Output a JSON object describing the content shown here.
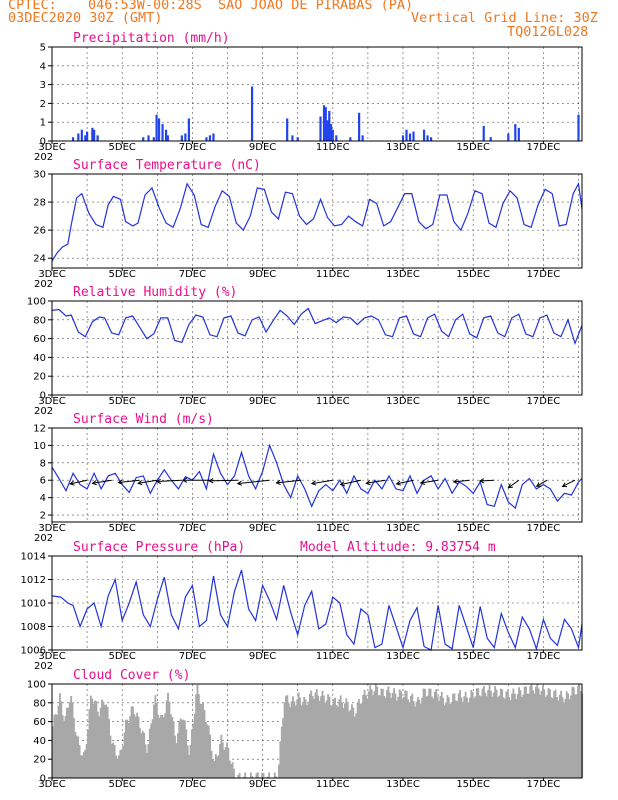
{
  "header": {
    "agency": "CPTEC:",
    "location": "046:53W-00:28S  SAO JOAO DE PIRABAS (PA)",
    "start_time": "03DEC2020 30Z (GMT)",
    "grid_note": "Vertical Grid Line: 30Z",
    "model_code": "TQ0126L028"
  },
  "colors": {
    "header": "#f07820",
    "title": "#e8108c",
    "series": "#2233dd",
    "bars": "#2244ee",
    "cloud": "#a8a8a8",
    "wind_arrow": "#000000"
  },
  "x_axis": {
    "tick_labels": [
      "3DEC",
      "5DEC",
      "7DEC",
      "9DEC",
      "11DEC",
      "13DEC",
      "15DEC",
      "17DEC"
    ],
    "year_label": "202"
  },
  "chart_data": [
    {
      "id": "precip",
      "type": "bar",
      "title": "Precipitation (mm/h)",
      "ylabel": "mm/h",
      "ylim": [
        0,
        5
      ],
      "yticks": [
        0,
        1,
        2,
        3,
        4,
        5
      ],
      "x_range_days": [
        0,
        15.1
      ],
      "events": [
        {
          "day": 0.6,
          "value": 0.2
        },
        {
          "day": 0.75,
          "value": 0.4
        },
        {
          "day": 0.85,
          "value": 0.6
        },
        {
          "day": 0.95,
          "value": 0.3
        },
        {
          "day": 1.0,
          "value": 0.5
        },
        {
          "day": 1.15,
          "value": 0.7
        },
        {
          "day": 1.2,
          "value": 0.6
        },
        {
          "day": 1.3,
          "value": 0.3
        },
        {
          "day": 2.6,
          "value": 0.2
        },
        {
          "day": 2.75,
          "value": 0.3
        },
        {
          "day": 2.9,
          "value": 0.2
        },
        {
          "day": 2.98,
          "value": 1.4
        },
        {
          "day": 3.05,
          "value": 1.2
        },
        {
          "day": 3.15,
          "value": 0.9
        },
        {
          "day": 3.25,
          "value": 0.6
        },
        {
          "day": 3.3,
          "value": 0.3
        },
        {
          "day": 3.7,
          "value": 0.3
        },
        {
          "day": 3.8,
          "value": 0.4
        },
        {
          "day": 3.9,
          "value": 1.2
        },
        {
          "day": 4.4,
          "value": 0.2
        },
        {
          "day": 4.5,
          "value": 0.3
        },
        {
          "day": 4.6,
          "value": 0.4
        },
        {
          "day": 5.7,
          "value": 2.9
        },
        {
          "day": 6.7,
          "value": 1.2
        },
        {
          "day": 6.85,
          "value": 0.3
        },
        {
          "day": 7.0,
          "value": 0.2
        },
        {
          "day": 7.65,
          "value": 1.3
        },
        {
          "day": 7.75,
          "value": 1.9
        },
        {
          "day": 7.8,
          "value": 1.8
        },
        {
          "day": 7.85,
          "value": 1.1
        },
        {
          "day": 7.9,
          "value": 1.6
        },
        {
          "day": 7.95,
          "value": 0.9
        },
        {
          "day": 8.0,
          "value": 0.6
        },
        {
          "day": 8.1,
          "value": 0.3
        },
        {
          "day": 8.5,
          "value": 0.2
        },
        {
          "day": 8.75,
          "value": 1.5
        },
        {
          "day": 8.85,
          "value": 0.3
        },
        {
          "day": 10.0,
          "value": 0.3
        },
        {
          "day": 10.1,
          "value": 0.6
        },
        {
          "day": 10.2,
          "value": 0.4
        },
        {
          "day": 10.3,
          "value": 0.5
        },
        {
          "day": 10.6,
          "value": 0.6
        },
        {
          "day": 10.7,
          "value": 0.3
        },
        {
          "day": 10.8,
          "value": 0.2
        },
        {
          "day": 12.3,
          "value": 0.8
        },
        {
          "day": 12.5,
          "value": 0.2
        },
        {
          "day": 13.0,
          "value": 0.4
        },
        {
          "day": 13.2,
          "value": 0.9
        },
        {
          "day": 13.3,
          "value": 0.7
        },
        {
          "day": 15.0,
          "value": 1.4
        }
      ]
    },
    {
      "id": "temp",
      "type": "line",
      "title": "Surface Temperature (nC)",
      "ylabel": "nC",
      "ylim": [
        23.3,
        30
      ],
      "yticks": [
        24,
        26,
        28,
        30
      ],
      "x": [
        0,
        0.15,
        0.3,
        0.45,
        0.55,
        0.7,
        0.85,
        1.05,
        1.25,
        1.45,
        1.6,
        1.75,
        1.95,
        2.1,
        2.3,
        2.45,
        2.65,
        2.85,
        3.05,
        3.25,
        3.45,
        3.65,
        3.85,
        4.05,
        4.25,
        4.45,
        4.65,
        4.85,
        5.05,
        5.25,
        5.45,
        5.65,
        5.85,
        6.05,
        6.25,
        6.45,
        6.65,
        6.85,
        7.05,
        7.25,
        7.45,
        7.65,
        7.85,
        8.05,
        8.25,
        8.45,
        8.65,
        8.85,
        9.05,
        9.25,
        9.45,
        9.65,
        9.85,
        10.05,
        10.25,
        10.45,
        10.65,
        10.85,
        11.05,
        11.25,
        11.45,
        11.65,
        11.85,
        12.05,
        12.25,
        12.45,
        12.65,
        12.85,
        13.05,
        13.25,
        13.45,
        13.65,
        13.85,
        14.05,
        14.25,
        14.45,
        14.65,
        14.85,
        15.0,
        15.1
      ],
      "values": [
        23.8,
        24.4,
        24.8,
        25.0,
        26.4,
        28.3,
        28.6,
        27.2,
        26.4,
        26.2,
        27.8,
        28.4,
        28.2,
        26.6,
        26.3,
        26.5,
        28.5,
        29.0,
        27.6,
        26.5,
        26.2,
        27.5,
        29.3,
        28.5,
        26.4,
        26.2,
        27.7,
        28.8,
        28.4,
        26.5,
        26.0,
        27.0,
        29.0,
        28.9,
        27.3,
        26.8,
        28.7,
        28.6,
        27.0,
        26.4,
        26.8,
        28.2,
        26.9,
        26.3,
        26.4,
        27.0,
        26.6,
        26.3,
        28.2,
        27.9,
        26.3,
        26.6,
        27.6,
        28.6,
        28.6,
        26.6,
        26.1,
        26.4,
        28.5,
        28.5,
        26.6,
        26.0,
        27.2,
        28.8,
        28.6,
        26.5,
        26.2,
        27.9,
        28.8,
        28.3,
        26.4,
        26.2,
        27.8,
        28.9,
        28.6,
        26.3,
        26.4,
        28.6,
        29.3,
        27.5
      ]
    },
    {
      "id": "rh",
      "type": "line",
      "title": "Relative Humidity (%)",
      "ylabel": "%",
      "ylim": [
        0,
        100
      ],
      "yticks": [
        0,
        20,
        40,
        60,
        80,
        100
      ],
      "x": [
        0,
        0.2,
        0.4,
        0.55,
        0.75,
        0.95,
        1.15,
        1.35,
        1.5,
        1.7,
        1.9,
        2.1,
        2.3,
        2.5,
        2.7,
        2.9,
        3.1,
        3.3,
        3.5,
        3.7,
        3.9,
        4.1,
        4.3,
        4.5,
        4.7,
        4.9,
        5.1,
        5.3,
        5.5,
        5.7,
        5.9,
        6.1,
        6.3,
        6.5,
        6.7,
        6.9,
        7.1,
        7.3,
        7.5,
        7.7,
        7.9,
        8.1,
        8.3,
        8.5,
        8.7,
        8.9,
        9.1,
        9.3,
        9.5,
        9.7,
        9.9,
        10.1,
        10.3,
        10.5,
        10.7,
        10.9,
        11.1,
        11.3,
        11.5,
        11.7,
        11.9,
        12.1,
        12.3,
        12.5,
        12.7,
        12.9,
        13.1,
        13.3,
        13.5,
        13.7,
        13.9,
        14.1,
        14.3,
        14.5,
        14.7,
        14.9,
        15.1
      ],
      "values": [
        90,
        91,
        84,
        85,
        67,
        62,
        78,
        83,
        82,
        66,
        64,
        82,
        84,
        72,
        60,
        65,
        82,
        82,
        58,
        56,
        75,
        85,
        83,
        64,
        62,
        82,
        84,
        66,
        63,
        80,
        83,
        67,
        79,
        90,
        84,
        75,
        86,
        92,
        76,
        79,
        82,
        77,
        83,
        82,
        75,
        82,
        84,
        80,
        64,
        62,
        82,
        84,
        65,
        62,
        82,
        86,
        68,
        62,
        80,
        86,
        65,
        61,
        82,
        84,
        66,
        62,
        82,
        86,
        65,
        62,
        82,
        85,
        66,
        62,
        80,
        55,
        74
      ]
    },
    {
      "id": "wind",
      "type": "line",
      "title": "Surface Wind (m/s)",
      "ylabel": "m/s",
      "ylim": [
        1.2,
        12
      ],
      "yticks": [
        2,
        4,
        6,
        8,
        10,
        12
      ],
      "x": [
        0,
        0.2,
        0.4,
        0.6,
        0.8,
        1.0,
        1.2,
        1.4,
        1.6,
        1.8,
        2.0,
        2.2,
        2.4,
        2.6,
        2.8,
        3.0,
        3.2,
        3.4,
        3.6,
        3.8,
        4.0,
        4.2,
        4.4,
        4.6,
        4.8,
        5.0,
        5.2,
        5.4,
        5.6,
        5.8,
        6.0,
        6.2,
        6.4,
        6.6,
        6.8,
        7.0,
        7.2,
        7.4,
        7.6,
        7.8,
        8.0,
        8.2,
        8.4,
        8.6,
        8.8,
        9.0,
        9.2,
        9.4,
        9.6,
        9.8,
        10.0,
        10.2,
        10.4,
        10.6,
        10.8,
        11.0,
        11.2,
        11.4,
        11.6,
        11.8,
        12.0,
        12.2,
        12.4,
        12.6,
        12.8,
        13.0,
        13.2,
        13.4,
        13.6,
        13.8,
        14.0,
        14.2,
        14.4,
        14.6,
        14.8,
        15.0,
        15.1
      ],
      "values": [
        7.5,
        6.2,
        4.8,
        6.8,
        5.5,
        5.0,
        6.8,
        5.0,
        6.5,
        6.8,
        5.5,
        4.6,
        6.3,
        6.5,
        4.5,
        6.0,
        7.2,
        6.0,
        5.0,
        6.4,
        6.0,
        7.0,
        5.0,
        9.0,
        6.8,
        5.5,
        6.5,
        9.2,
        6.5,
        5.0,
        7.0,
        10.0,
        8.0,
        5.5,
        4.0,
        6.5,
        5.0,
        3.0,
        4.8,
        5.5,
        4.8,
        6.0,
        4.5,
        6.5,
        5.0,
        4.5,
        6.0,
        5.0,
        6.5,
        5.0,
        4.8,
        6.5,
        4.5,
        6.0,
        6.5,
        5.0,
        6.2,
        4.5,
        5.8,
        5.3,
        4.5,
        5.8,
        3.2,
        3.0,
        5.5,
        3.5,
        2.8,
        5.5,
        6.2,
        5.0,
        5.5,
        5.0,
        3.6,
        4.5,
        4.3,
        5.8,
        6.2
      ],
      "vectors": [
        {
          "day": 1.0,
          "len": 1.0,
          "angle": 200
        },
        {
          "day": 1.7,
          "len": 1.1,
          "angle": 195
        },
        {
          "day": 2.5,
          "len": 1.2,
          "angle": 190
        },
        {
          "day": 3.0,
          "len": 1.1,
          "angle": 195
        },
        {
          "day": 3.7,
          "len": 1.4,
          "angle": 185
        },
        {
          "day": 4.5,
          "len": 1.5,
          "angle": 180
        },
        {
          "day": 5.3,
          "len": 1.6,
          "angle": 182
        },
        {
          "day": 6.2,
          "len": 1.8,
          "angle": 190
        },
        {
          "day": 7.1,
          "len": 1.4,
          "angle": 190
        },
        {
          "day": 8.0,
          "len": 1.2,
          "angle": 195
        },
        {
          "day": 8.8,
          "len": 1.2,
          "angle": 200
        },
        {
          "day": 9.5,
          "len": 1.1,
          "angle": 195
        },
        {
          "day": 10.3,
          "len": 1.0,
          "angle": 200
        },
        {
          "day": 11.0,
          "len": 1.0,
          "angle": 195
        },
        {
          "day": 11.9,
          "len": 0.9,
          "angle": 190
        },
        {
          "day": 12.6,
          "len": 0.8,
          "angle": 185
        },
        {
          "day": 13.3,
          "len": 0.9,
          "angle": 230
        },
        {
          "day": 14.1,
          "len": 0.8,
          "angle": 225
        },
        {
          "day": 14.9,
          "len": 0.9,
          "angle": 220
        }
      ]
    },
    {
      "id": "pres",
      "type": "line",
      "title": "Surface Pressure (hPa)",
      "ylabel": "hPa",
      "extra_label": "Model Altitude: 9.83754 m",
      "ylim": [
        1006,
        1014
      ],
      "yticks": [
        1006,
        1008,
        1010,
        1012,
        1014
      ],
      "x": [
        0,
        0.25,
        0.45,
        0.6,
        0.8,
        1.0,
        1.2,
        1.4,
        1.6,
        1.8,
        2.0,
        2.2,
        2.4,
        2.6,
        2.8,
        3.0,
        3.2,
        3.4,
        3.6,
        3.8,
        4.0,
        4.2,
        4.4,
        4.6,
        4.8,
        5.0,
        5.2,
        5.4,
        5.6,
        5.8,
        6.0,
        6.2,
        6.4,
        6.6,
        6.8,
        7.0,
        7.2,
        7.4,
        7.6,
        7.8,
        8.0,
        8.2,
        8.4,
        8.6,
        8.8,
        9.0,
        9.2,
        9.4,
        9.6,
        9.8,
        10.0,
        10.2,
        10.4,
        10.6,
        10.8,
        11.0,
        11.2,
        11.4,
        11.6,
        11.8,
        12.0,
        12.2,
        12.4,
        12.6,
        12.8,
        13.0,
        13.2,
        13.4,
        13.6,
        13.8,
        14.0,
        14.2,
        14.4,
        14.6,
        14.8,
        15.0,
        15.1
      ],
      "values": [
        1010.6,
        1010.5,
        1010.0,
        1009.8,
        1008.0,
        1009.5,
        1010.0,
        1008.0,
        1010.6,
        1012.0,
        1008.5,
        1010.0,
        1011.8,
        1009.0,
        1008.0,
        1010.3,
        1012.2,
        1009.0,
        1007.8,
        1010.5,
        1011.5,
        1008.0,
        1008.5,
        1012.3,
        1009.0,
        1008.0,
        1011.0,
        1012.8,
        1009.5,
        1008.5,
        1011.5,
        1010.2,
        1008.6,
        1011.5,
        1009.2,
        1007.3,
        1009.8,
        1011.0,
        1007.8,
        1008.2,
        1010.5,
        1010.0,
        1007.3,
        1006.5,
        1009.5,
        1009.0,
        1006.2,
        1006.5,
        1009.8,
        1008.0,
        1006.2,
        1008.5,
        1009.6,
        1006.3,
        1006.0,
        1009.8,
        1006.5,
        1006.1,
        1009.8,
        1008.0,
        1006.2,
        1009.7,
        1007.0,
        1006.2,
        1009.1,
        1007.5,
        1006.2,
        1008.8,
        1007.8,
        1006.1,
        1008.6,
        1007.0,
        1006.4,
        1008.6,
        1007.8,
        1006.2,
        1008.2
      ]
    },
    {
      "id": "cloud",
      "type": "bar",
      "title": "Cloud Cover (%)",
      "ylabel": "%",
      "ylim": [
        0,
        100
      ],
      "yticks": [
        0,
        20,
        40,
        60,
        80,
        100
      ],
      "x": [
        0,
        0.2,
        0.35,
        0.5,
        0.7,
        0.9,
        1.1,
        1.3,
        1.5,
        1.7,
        1.9,
        2.1,
        2.3,
        2.5,
        2.7,
        2.9,
        3.1,
        3.3,
        3.5,
        3.7,
        3.9,
        4.1,
        4.2,
        4.4,
        4.6,
        4.8,
        5.0,
        5.2,
        5.4,
        5.6,
        5.8,
        5.9,
        6.0,
        6.2,
        6.4,
        6.6,
        6.8,
        7.0,
        7.2,
        7.4,
        7.6,
        7.8,
        8.0,
        8.2,
        8.4,
        8.6,
        8.8,
        9.0,
        9.2,
        9.4,
        9.6,
        9.8,
        10.0,
        10.2,
        10.4,
        10.6,
        10.8,
        11.0,
        11.2,
        11.4,
        11.6,
        11.8,
        12.0,
        12.2,
        12.4,
        12.6,
        12.8,
        13.0,
        13.2,
        13.4,
        13.6,
        13.8,
        14.0,
        14.2,
        14.4,
        14.6,
        14.8,
        15.0,
        15.1
      ],
      "values": [
        55,
        85,
        60,
        90,
        40,
        20,
        90,
        70,
        85,
        35,
        20,
        60,
        75,
        55,
        30,
        85,
        60,
        88,
        40,
        70,
        25,
        95,
        85,
        60,
        15,
        40,
        30,
        0,
        0,
        0,
        0,
        5,
        0,
        0,
        0,
        85,
        80,
        85,
        80,
        90,
        88,
        85,
        80,
        82,
        78,
        70,
        85,
        92,
        95,
        90,
        92,
        88,
        90,
        85,
        80,
        92,
        90,
        88,
        82,
        85,
        88,
        85,
        90,
        92,
        93,
        92,
        90,
        88,
        90,
        92,
        95,
        96,
        92,
        90,
        88,
        85,
        92,
        95,
        95
      ]
    }
  ]
}
